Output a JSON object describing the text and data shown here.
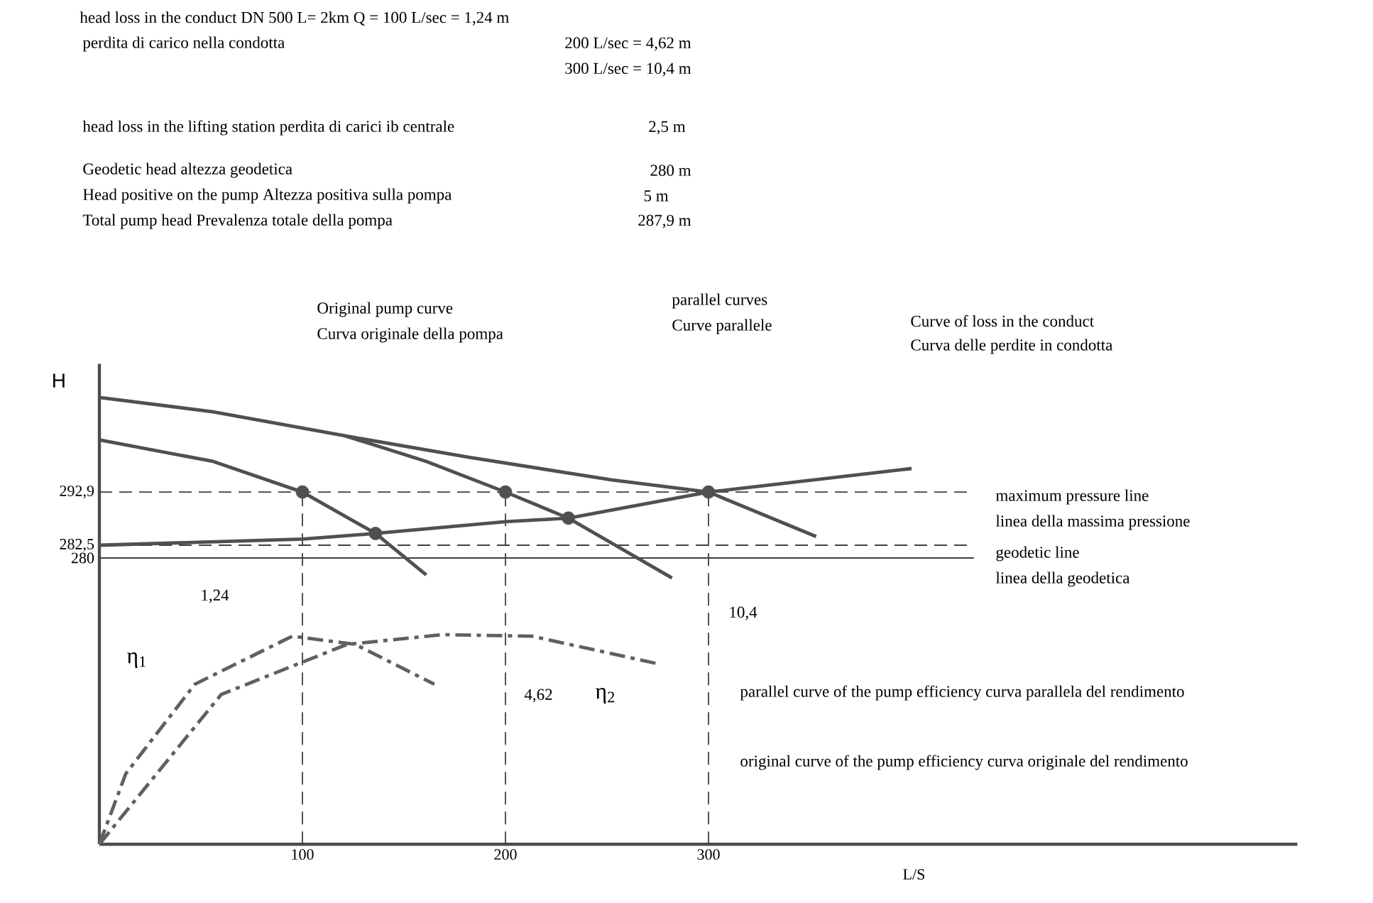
{
  "chart_data": {
    "type": "line",
    "xlabel": "L/S",
    "ylabel": "H",
    "xlim": [
      0,
      590
    ],
    "ylim": [
      224,
      318
    ],
    "xticks": [
      100,
      200,
      300
    ],
    "yticks": [
      280,
      {
        "value": 282.5,
        "label": "282,5"
      },
      {
        "value": 292.9,
        "label": "292,9"
      }
    ],
    "series": [
      {
        "color": "#505050",
        "line_style": "solid",
        "x": [
          0,
          56,
          100,
          136,
          161
        ],
        "values": [
          303.1,
          298.9,
          292.9,
          284.8,
          276.7
        ]
      },
      {
        "color": "#505050",
        "line_style": "solid",
        "x": [
          0,
          56,
          121,
          161,
          200,
          231,
          282
        ],
        "values": [
          311.4,
          308.6,
          303.9,
          298.9,
          292.9,
          287.8,
          276.1
        ]
      },
      {
        "color": "#505050",
        "line_style": "solid",
        "x": [
          121,
          182,
          252,
          300,
          353
        ],
        "values": [
          303.9,
          299.7,
          295.3,
          292.9,
          284.2
        ]
      },
      {
        "color": "#505050",
        "line_style": "solid",
        "x": [
          0,
          100,
          136,
          200,
          231,
          300,
          400
        ],
        "values": [
          282.5,
          283.7,
          284.8,
          287.1,
          287.8,
          292.9,
          297.5
        ]
      },
      {
        "color": "#606060",
        "line_style": "dashed",
        "x": [
          0,
          60,
          122,
          169,
          213,
          274
        ],
        "values": [
          224,
          253.3,
          263.1,
          265,
          264.7,
          259.4
        ]
      },
      {
        "color": "#606060",
        "line_style": "dashed",
        "x": [
          0,
          13,
          47,
          95,
          126,
          165
        ],
        "values": [
          224,
          237.8,
          255.3,
          264.7,
          263.1,
          255.3
        ]
      },
      {
        "type": "scatter",
        "color": "#505050",
        "marker": "circle",
        "x": [
          100,
          136,
          200,
          231,
          300
        ],
        "values": [
          292.9,
          284.8,
          292.9,
          287.8,
          292.9
        ]
      }
    ],
    "ref_lines": [
      {
        "axis": "y",
        "value": 292.9,
        "line_style": "dashed",
        "color": "#404040"
      },
      {
        "axis": "y",
        "value": 282.5,
        "line_style": "dashed",
        "color": "#404040"
      },
      {
        "axis": "y",
        "value": 280,
        "line_style": "solid",
        "color": "#404040"
      },
      {
        "axis": "x",
        "value": 100,
        "line_style": "dashed",
        "color": "#404040"
      },
      {
        "axis": "x",
        "value": 200,
        "line_style": "dashed",
        "color": "#404040"
      },
      {
        "axis": "x",
        "value": 300,
        "line_style": "dashed",
        "color": "#404040"
      }
    ],
    "annotations": [
      "head loss in the conduct DN 500 L= 2km Q = 100 L/sec = 1,24 m",
      "perdita di carico nella condotta",
      "200 L/sec = 4,62 m",
      "300 L/sec = 10,4 m",
      "head loss in the lifting station  perdita di carici ib centrale",
      "2,5  m",
      "Geodetic head  altezza geodetica",
      "280 m",
      "Head positive on the pump Altezza positiva sulla pompa",
      "5 m",
      "Total pump head  Prevalenza totale della pompa",
      "287,9 m",
      "Original pump curve",
      "Curva originale della pompa",
      "parallel curves",
      "Curve parallele",
      "Curve of loss in the conduct",
      "Curva delle perdite in condotta",
      "maximum pressure line",
      "linea della massima pressione",
      "geodetic line",
      "linea della geodetica",
      "parallel curve of the pump efficiency curva parallela del rendimento",
      "original curve of the pump efficiency curva originale del rendimento",
      "1,24",
      "4,62",
      "10,4",
      "η$_{1}$",
      "η$_{2}$"
    ]
  }
}
